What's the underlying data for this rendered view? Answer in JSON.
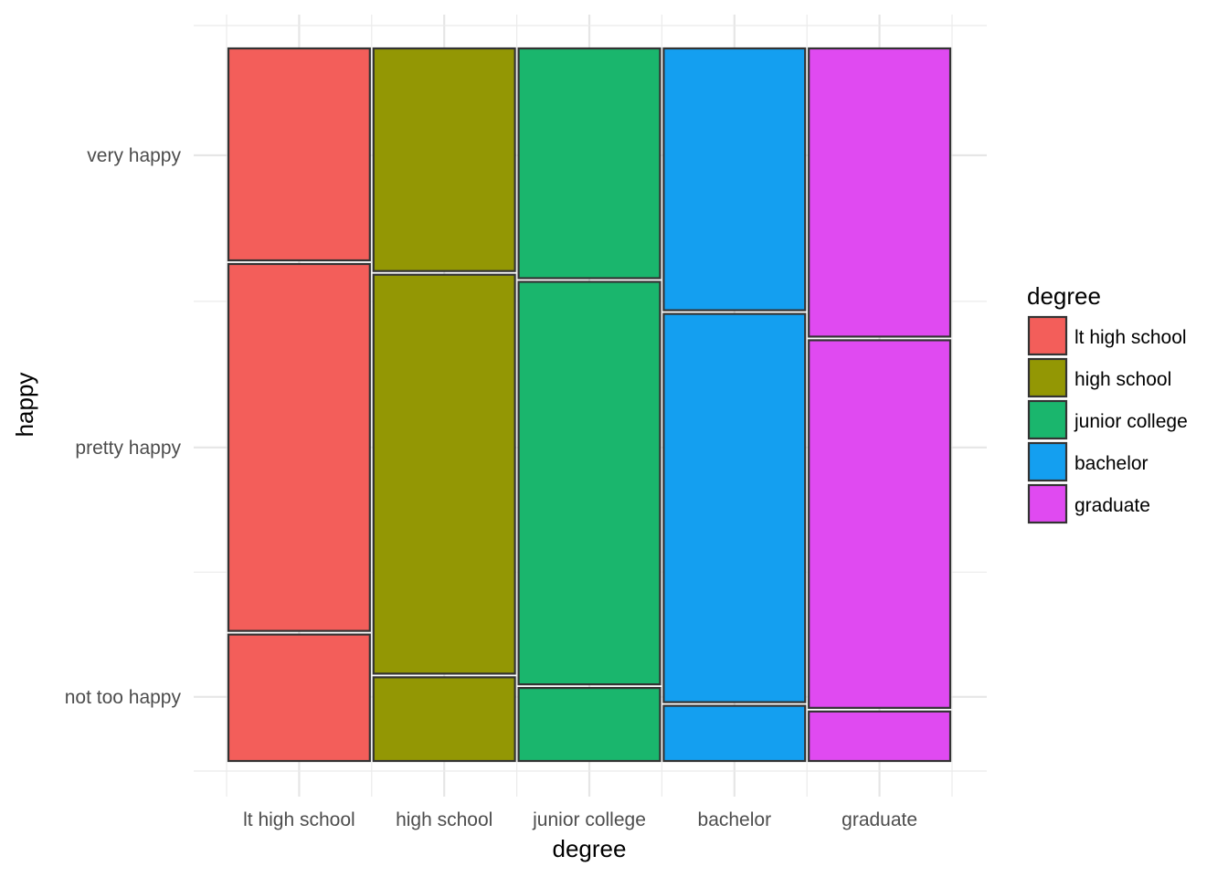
{
  "chart_data": {
    "type": "mosaic",
    "xlabel": "degree",
    "ylabel": "happy",
    "grid": true,
    "legend_position": "right",
    "legend_title": "degree",
    "categories": [
      "lt high school",
      "high school",
      "junior college",
      "bachelor",
      "graduate"
    ],
    "column_widths": [
      0.2,
      0.2,
      0.2,
      0.2,
      0.2
    ],
    "y_levels": [
      "not too happy",
      "pretty happy",
      "very happy"
    ],
    "y_tick_labels": [
      "not too happy",
      "pretty happy",
      "very happy"
    ],
    "series": [
      {
        "name": "lt high school",
        "color": "#F35E5A",
        "proportions": {
          "not too happy": 0.18,
          "pretty happy": 0.52,
          "very happy": 0.3
        }
      },
      {
        "name": "high school",
        "color": "#939704",
        "proportions": {
          "not too happy": 0.12,
          "pretty happy": 0.565,
          "very happy": 0.315
        }
      },
      {
        "name": "junior college",
        "color": "#1AB66D",
        "proportions": {
          "not too happy": 0.105,
          "pretty happy": 0.57,
          "very happy": 0.325
        }
      },
      {
        "name": "bachelor",
        "color": "#149FF0",
        "proportions": {
          "not too happy": 0.08,
          "pretty happy": 0.55,
          "very happy": 0.37
        }
      },
      {
        "name": "graduate",
        "color": "#E04AF1",
        "proportions": {
          "not too happy": 0.072,
          "pretty happy": 0.521,
          "very happy": 0.407
        }
      }
    ]
  }
}
